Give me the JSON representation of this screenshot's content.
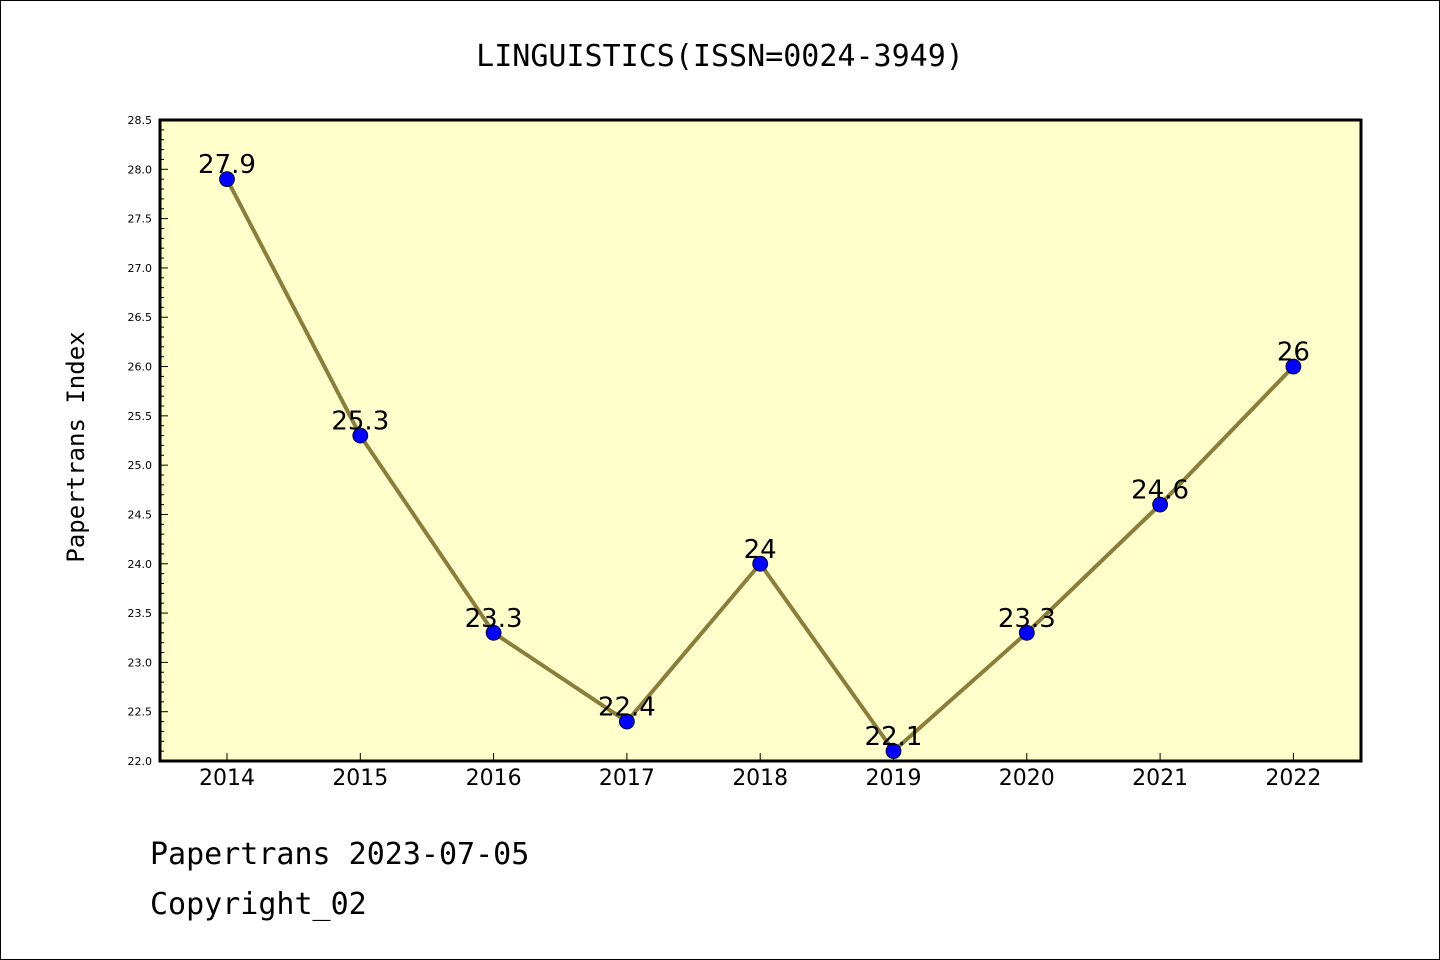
{
  "chart_data": {
    "type": "line",
    "title": "LINGUISTICS(ISSN=0024-3949)",
    "ylabel": "Papertrans Index",
    "xlabel": "",
    "categories": [
      "2014",
      "2015",
      "2016",
      "2017",
      "2018",
      "2019",
      "2020",
      "2021",
      "2022"
    ],
    "values": [
      27.9,
      25.3,
      23.3,
      22.4,
      24,
      22.1,
      23.3,
      24.6,
      26
    ],
    "data_labels": [
      "27.9",
      "25.3",
      "23.3",
      "22.4",
      "24",
      "22.1",
      "23.3",
      "24.6",
      "26"
    ],
    "ylim": [
      22.0,
      28.5
    ],
    "yticks": [
      "22.0",
      "22.5",
      "23.0",
      "23.5",
      "24.0",
      "24.5",
      "25.0",
      "25.5",
      "26.0",
      "26.5",
      "27.0",
      "27.5",
      "28.0",
      "28.5"
    ],
    "grid": false,
    "colors": {
      "plot_background": "#ffffcc",
      "line": "#8b7d3a",
      "marker": "#0000ff"
    }
  },
  "footer": {
    "line1": "Papertrans 2023-07-05",
    "line2": "Copyright_02"
  }
}
